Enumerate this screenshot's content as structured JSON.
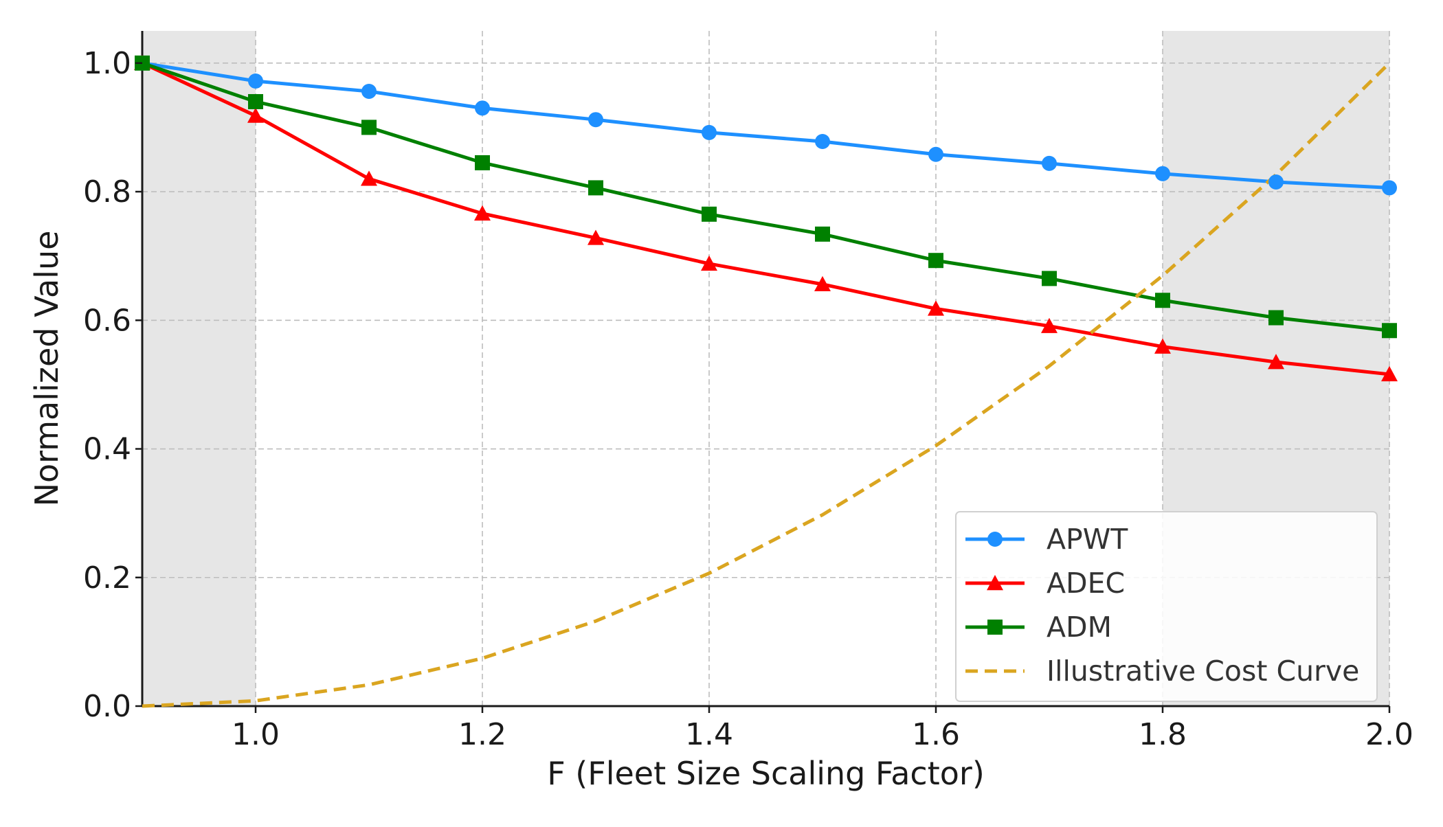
{
  "chart_data": {
    "type": "line",
    "title": "",
    "xlabel": "F (Fleet Size Scaling Factor)",
    "ylabel": "Normalized Value",
    "xlim": [
      0.9,
      2.0
    ],
    "ylim": [
      0.0,
      1.05
    ],
    "xticks": [
      1.0,
      1.2,
      1.4,
      1.6,
      1.8,
      2.0
    ],
    "xtick_labels": [
      "1.0",
      "1.2",
      "1.4",
      "1.6",
      "1.8",
      "2.0"
    ],
    "yticks": [
      0.0,
      0.2,
      0.4,
      0.6,
      0.8,
      1.0
    ],
    "ytick_labels": [
      "0.0",
      "0.2",
      "0.4",
      "0.6",
      "0.8",
      "1.0"
    ],
    "grid": true,
    "shaded_regions": [
      {
        "x_start": 0.9,
        "x_end": 1.0,
        "color": "#e6e6e6"
      },
      {
        "x_start": 1.8,
        "x_end": 2.0,
        "color": "#e6e6e6"
      }
    ],
    "x": [
      0.9,
      1.0,
      1.1,
      1.2,
      1.3,
      1.4,
      1.5,
      1.6,
      1.7,
      1.8,
      1.9,
      2.0
    ],
    "series": [
      {
        "name": "APWT",
        "color": "#1e90ff",
        "marker": "circle",
        "style": "solid",
        "values": [
          1.0,
          0.972,
          0.956,
          0.93,
          0.912,
          0.892,
          0.878,
          0.858,
          0.844,
          0.828,
          0.815,
          0.806
        ]
      },
      {
        "name": "ADEC",
        "color": "#ff0000",
        "marker": "triangle",
        "style": "solid",
        "values": [
          1.0,
          0.918,
          0.82,
          0.766,
          0.728,
          0.688,
          0.656,
          0.618,
          0.591,
          0.559,
          0.535,
          0.516
        ]
      },
      {
        "name": "ADM",
        "color": "#008000",
        "marker": "square",
        "style": "solid",
        "values": [
          1.0,
          0.94,
          0.9,
          0.845,
          0.806,
          0.765,
          0.734,
          0.693,
          0.665,
          0.631,
          0.604,
          0.584
        ]
      },
      {
        "name": "Illustrative Cost Curve",
        "color": "#daa520",
        "marker": "none",
        "style": "dashed",
        "values": [
          0.0,
          0.00826,
          0.0331,
          0.0744,
          0.1322,
          0.2066,
          0.2975,
          0.405,
          0.5289,
          0.6694,
          0.8264,
          1.0
        ]
      }
    ],
    "legend": {
      "position": "bottom-right",
      "entries": [
        "APWT",
        "ADEC",
        "ADM",
        "Illustrative Cost Curve"
      ]
    }
  }
}
